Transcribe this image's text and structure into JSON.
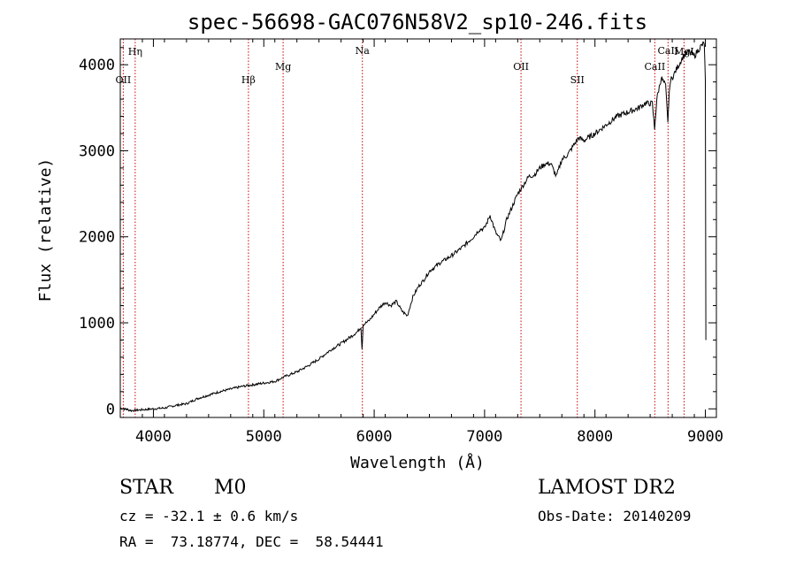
{
  "chart_data": {
    "type": "line",
    "title": "spec-56698-GAC076N58V2_sp10-246.fits",
    "xlabel": "Wavelength (Å)",
    "ylabel": "Flux (relative)",
    "xlim": [
      3700,
      9100
    ],
    "ylim": [
      -100,
      4300
    ],
    "xticks": [
      4000,
      5000,
      6000,
      7000,
      8000,
      9000
    ],
    "yticks": [
      0,
      1000,
      2000,
      3000,
      4000
    ],
    "series": [
      {
        "x": [
          3700,
          3800,
          3900,
          4000,
          4100,
          4200,
          4300,
          4400,
          4500,
          4600,
          4700,
          4800,
          4900,
          5000,
          5100,
          5150,
          5200,
          5300,
          5400,
          5500,
          5600,
          5700,
          5800,
          5850,
          5880,
          5890,
          5900,
          5950,
          6000,
          6050,
          6100,
          6150,
          6200,
          6250,
          6300,
          6350,
          6400,
          6450,
          6500,
          6600,
          6700,
          6800,
          6900,
          6950,
          7000,
          7050,
          7100,
          7150,
          7200,
          7250,
          7300,
          7350,
          7400,
          7450,
          7500,
          7550,
          7600,
          7650,
          7700,
          7750,
          7800,
          7850,
          7900,
          8000,
          8100,
          8200,
          8300,
          8400,
          8450,
          8500,
          8520,
          8540,
          8560,
          8600,
          8640,
          8660,
          8680,
          8720,
          8760,
          8800,
          8850,
          8900,
          8950,
          8990,
          9000,
          9005
        ],
        "y": [
          10,
          -20,
          -10,
          0,
          10,
          40,
          60,
          120,
          160,
          200,
          230,
          260,
          280,
          300,
          320,
          350,
          380,
          430,
          500,
          580,
          680,
          760,
          850,
          900,
          950,
          700,
          980,
          1020,
          1100,
          1180,
          1240,
          1200,
          1250,
          1140,
          1080,
          1300,
          1420,
          1500,
          1600,
          1700,
          1780,
          1880,
          2000,
          2080,
          2100,
          2250,
          2050,
          1950,
          2200,
          2350,
          2500,
          2600,
          2700,
          2720,
          2800,
          2850,
          2850,
          2700,
          2900,
          2950,
          3050,
          3150,
          3120,
          3200,
          3300,
          3400,
          3450,
          3500,
          3550,
          3550,
          3550,
          3250,
          3600,
          3850,
          3750,
          3350,
          3800,
          3900,
          4000,
          4100,
          4150,
          4100,
          4200,
          4250,
          3800,
          800
        ]
      }
    ],
    "lines": [
      {
        "name": "Hη",
        "x": 3835,
        "tier": 0
      },
      {
        "name": "OII",
        "x": 3727,
        "tier": 1
      },
      {
        "name": "Hβ",
        "x": 4861,
        "tier": 1
      },
      {
        "name": "Mg",
        "x": 5175,
        "tier": 2
      },
      {
        "name": "Na",
        "x": 5893,
        "tier": 3
      },
      {
        "name": "OII",
        "x": 7330,
        "tier": 2
      },
      {
        "name": "SII",
        "x": 7840,
        "tier": 1
      },
      {
        "name": "CaII",
        "x": 8542,
        "tier": 2
      },
      {
        "name": "CaII",
        "x": 8662,
        "tier": 3
      },
      {
        "name": "MgI",
        "x": 8807,
        "tier": 0
      }
    ],
    "colors": {
      "spectrum": "#000000",
      "lines": "#cc0000",
      "axes": "#000000"
    }
  },
  "info": {
    "class": "STAR",
    "subclass": "M0",
    "survey": "LAMOST DR2",
    "cz": "cz = -32.1 ± 0.6 km/s",
    "obs_date": "Obs-Date: 20140209",
    "radec": "RA =  73.18774, DEC =  58.54441"
  }
}
